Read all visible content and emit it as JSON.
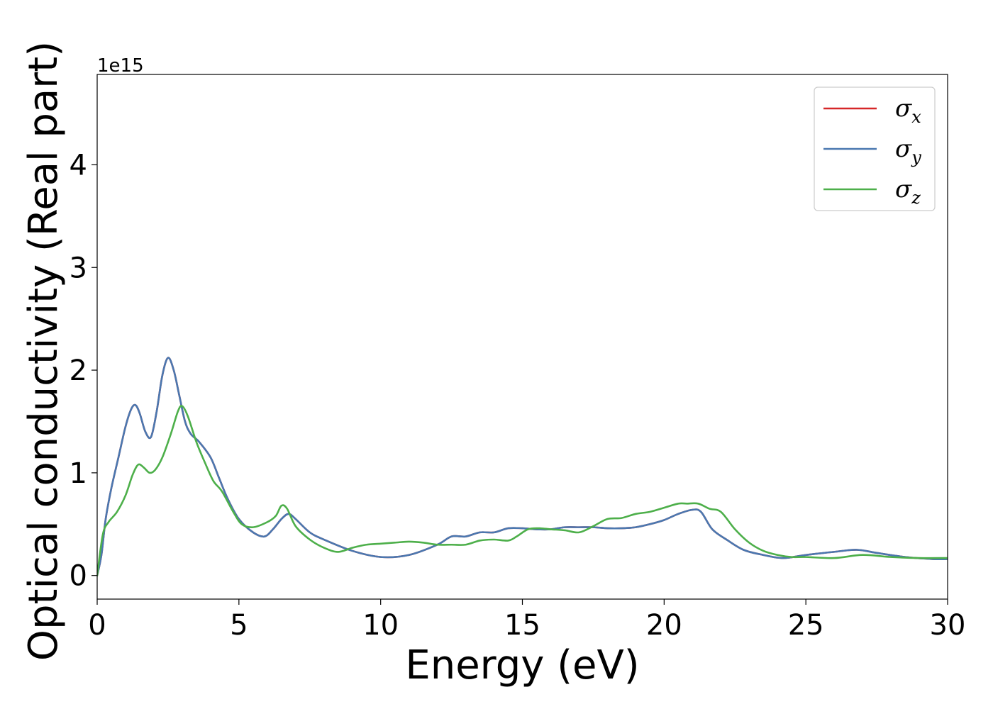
{
  "chart_data": {
    "type": "line",
    "xlabel": "Energy (eV)",
    "ylabel": "Optical conductivity (Real part)",
    "y_offset_label": "1e15",
    "xlim": [
      0,
      30
    ],
    "ylim": [
      -0.23,
      4.88
    ],
    "x_ticks": [
      0,
      5,
      10,
      15,
      20,
      25,
      30
    ],
    "y_ticks": [
      0,
      1,
      2,
      3,
      4
    ],
    "grid": false,
    "legend_position": "top-right",
    "series": [
      {
        "name": "σx",
        "legend_base": "σ",
        "legend_sub": "x",
        "color": "#d62728",
        "x": [
          0,
          0.15,
          0.3,
          0.5,
          0.75,
          1.0,
          1.2,
          1.35,
          1.5,
          1.7,
          1.9,
          2.1,
          2.3,
          2.5,
          2.7,
          2.9,
          3.1,
          3.3,
          3.6,
          4.0,
          4.3,
          4.6,
          5.0,
          5.5,
          5.9,
          6.2,
          6.5,
          6.75,
          7.0,
          7.5,
          8.0,
          9.0,
          10.0,
          11.0,
          12.0,
          12.5,
          13.0,
          13.5,
          14.0,
          14.5,
          15.0,
          15.5,
          16.0,
          16.5,
          17.0,
          17.5,
          18.0,
          18.5,
          19.0,
          19.5,
          20.0,
          20.5,
          21.0,
          21.3,
          21.7,
          22.2,
          22.8,
          23.5,
          24.2,
          25.0,
          26.0,
          26.8,
          27.5,
          28.5,
          29.5,
          30.0
        ],
        "y": [
          0.0,
          0.2,
          0.55,
          0.85,
          1.15,
          1.45,
          1.62,
          1.66,
          1.58,
          1.4,
          1.35,
          1.6,
          1.95,
          2.12,
          2.0,
          1.75,
          1.5,
          1.38,
          1.3,
          1.15,
          0.95,
          0.75,
          0.55,
          0.42,
          0.38,
          0.45,
          0.55,
          0.6,
          0.55,
          0.42,
          0.35,
          0.24,
          0.18,
          0.2,
          0.3,
          0.38,
          0.38,
          0.42,
          0.42,
          0.46,
          0.46,
          0.45,
          0.45,
          0.47,
          0.47,
          0.47,
          0.46,
          0.46,
          0.47,
          0.5,
          0.54,
          0.6,
          0.64,
          0.62,
          0.45,
          0.35,
          0.25,
          0.2,
          0.17,
          0.2,
          0.23,
          0.25,
          0.22,
          0.18,
          0.16,
          0.16
        ]
      },
      {
        "name": "σy",
        "legend_base": "σ",
        "legend_sub": "y",
        "color": "#4a78b0",
        "x": [
          0,
          0.15,
          0.3,
          0.5,
          0.75,
          1.0,
          1.2,
          1.35,
          1.5,
          1.7,
          1.9,
          2.1,
          2.3,
          2.5,
          2.7,
          2.9,
          3.1,
          3.3,
          3.6,
          4.0,
          4.3,
          4.6,
          5.0,
          5.5,
          5.9,
          6.2,
          6.5,
          6.75,
          7.0,
          7.5,
          8.0,
          9.0,
          10.0,
          11.0,
          12.0,
          12.5,
          13.0,
          13.5,
          14.0,
          14.5,
          15.0,
          15.5,
          16.0,
          16.5,
          17.0,
          17.5,
          18.0,
          18.5,
          19.0,
          19.5,
          20.0,
          20.5,
          21.0,
          21.3,
          21.7,
          22.2,
          22.8,
          23.5,
          24.2,
          25.0,
          26.0,
          26.8,
          27.5,
          28.5,
          29.5,
          30.0
        ],
        "y": [
          0.0,
          0.2,
          0.55,
          0.85,
          1.15,
          1.45,
          1.62,
          1.66,
          1.58,
          1.4,
          1.35,
          1.6,
          1.95,
          2.12,
          2.0,
          1.75,
          1.5,
          1.38,
          1.3,
          1.15,
          0.95,
          0.75,
          0.55,
          0.42,
          0.38,
          0.45,
          0.55,
          0.6,
          0.55,
          0.42,
          0.35,
          0.24,
          0.18,
          0.2,
          0.3,
          0.38,
          0.38,
          0.42,
          0.42,
          0.46,
          0.46,
          0.45,
          0.45,
          0.47,
          0.47,
          0.47,
          0.46,
          0.46,
          0.47,
          0.5,
          0.54,
          0.6,
          0.64,
          0.62,
          0.45,
          0.35,
          0.25,
          0.2,
          0.17,
          0.2,
          0.23,
          0.25,
          0.22,
          0.18,
          0.16,
          0.16
        ]
      },
      {
        "name": "σz",
        "legend_base": "σ",
        "legend_sub": "z",
        "color": "#4daf4a",
        "x": [
          0,
          0.2,
          0.4,
          0.7,
          1.0,
          1.25,
          1.45,
          1.65,
          1.85,
          2.05,
          2.3,
          2.6,
          2.85,
          3.0,
          3.2,
          3.5,
          3.8,
          4.1,
          4.4,
          4.8,
          5.1,
          5.5,
          6.0,
          6.3,
          6.5,
          6.7,
          7.0,
          7.5,
          8.0,
          8.5,
          9.0,
          9.5,
          10.0,
          10.5,
          11.0,
          11.5,
          12.0,
          12.5,
          13.0,
          13.5,
          14.0,
          14.5,
          14.8,
          15.2,
          15.6,
          16.0,
          16.5,
          17.0,
          17.5,
          18.0,
          18.5,
          19.0,
          19.5,
          20.0,
          20.5,
          20.8,
          21.2,
          21.6,
          22.0,
          22.5,
          23.0,
          23.5,
          24.0,
          24.5,
          25.0,
          26.0,
          27.0,
          28.0,
          29.0,
          30.0
        ],
        "y": [
          0.0,
          0.4,
          0.52,
          0.62,
          0.78,
          0.98,
          1.08,
          1.05,
          1.0,
          1.03,
          1.15,
          1.38,
          1.6,
          1.65,
          1.55,
          1.3,
          1.1,
          0.92,
          0.82,
          0.62,
          0.5,
          0.47,
          0.52,
          0.58,
          0.68,
          0.65,
          0.48,
          0.35,
          0.27,
          0.23,
          0.27,
          0.3,
          0.31,
          0.32,
          0.33,
          0.32,
          0.3,
          0.3,
          0.3,
          0.34,
          0.35,
          0.34,
          0.38,
          0.45,
          0.46,
          0.45,
          0.44,
          0.42,
          0.48,
          0.55,
          0.56,
          0.6,
          0.62,
          0.66,
          0.7,
          0.7,
          0.7,
          0.65,
          0.62,
          0.45,
          0.32,
          0.24,
          0.2,
          0.18,
          0.18,
          0.17,
          0.2,
          0.18,
          0.17,
          0.17
        ]
      }
    ]
  }
}
